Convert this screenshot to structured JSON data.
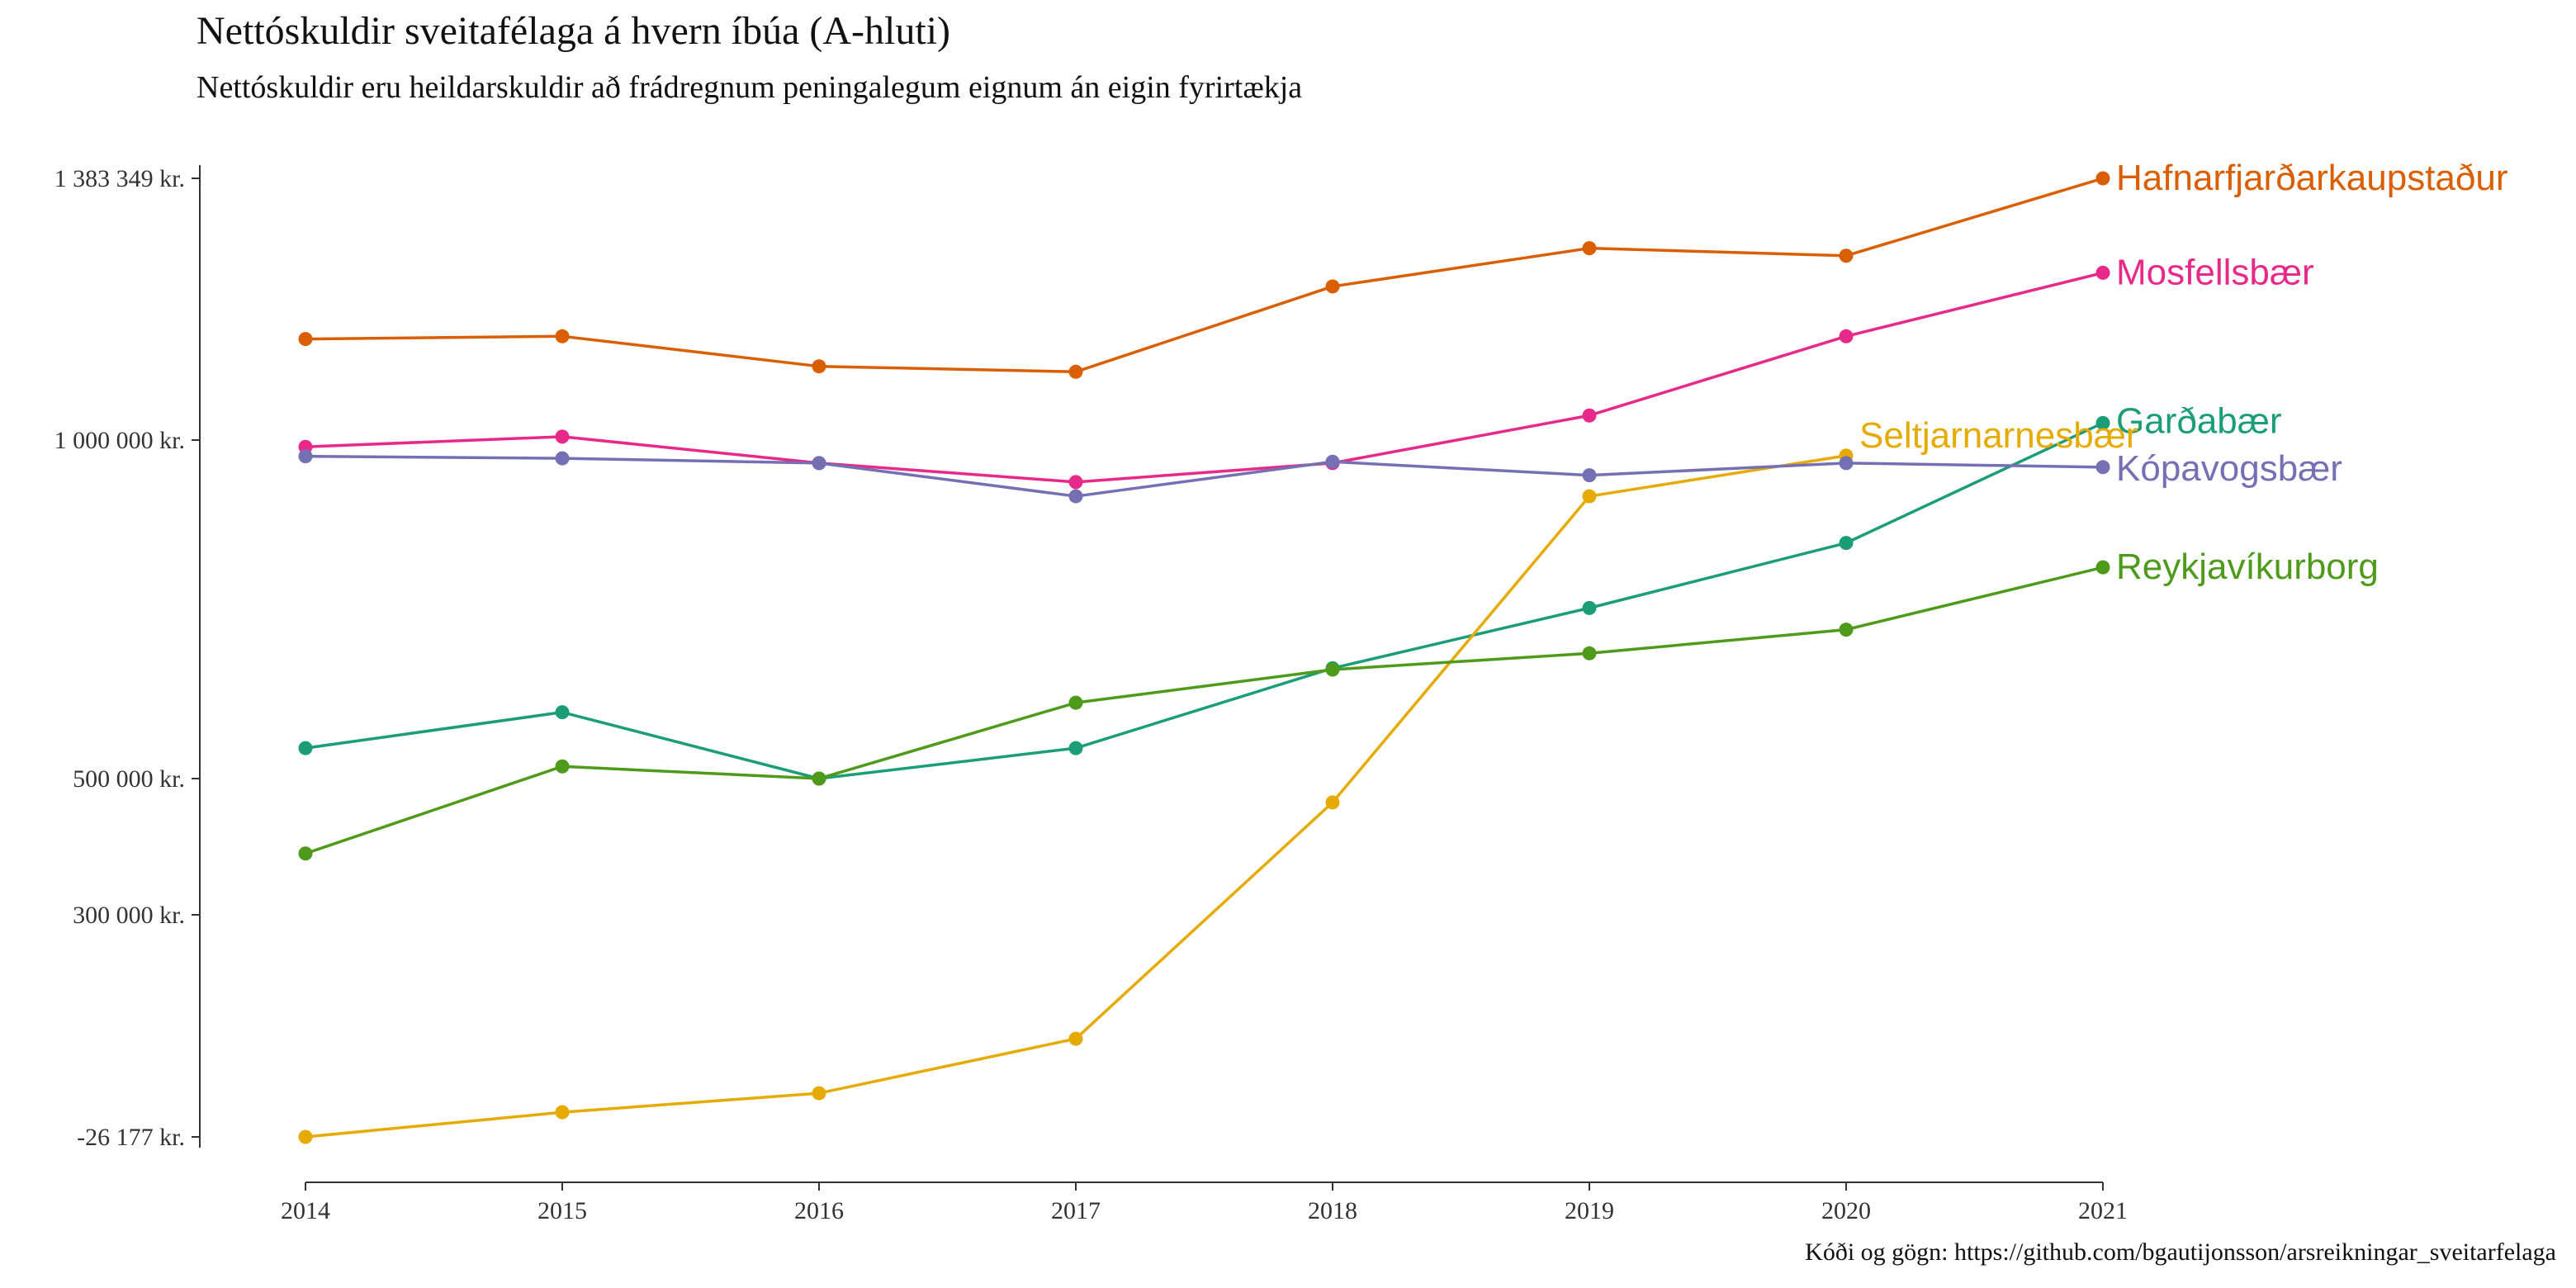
{
  "chart_data": {
    "type": "line",
    "title": "Nettóskuldir sveitafélaga á hvern íbúa (A-hluti)",
    "subtitle": "Nettóskuldir eru heildarskuldir að frádregnum peningalegum eignum án eigin fyrirtækja",
    "caption": "Kóði og gögn: https://github.com/bgautijonsson/arsreikningar_sveitarfelaga",
    "xlabel": "",
    "ylabel": "",
    "x": [
      2014,
      2015,
      2016,
      2017,
      2018,
      2019,
      2020,
      2021
    ],
    "x_ticks": [
      "2014",
      "2015",
      "2016",
      "2017",
      "2018",
      "2019",
      "2020",
      "2021"
    ],
    "y_tick_labels": [
      {
        "value": 1383349,
        "label": "1 383 349 kr."
      },
      {
        "value": 1000000,
        "label": "1 000 000 kr."
      },
      {
        "value": 500000,
        "label": "500 000 kr."
      },
      {
        "value": 300000,
        "label": "300 000 kr."
      },
      {
        "value": -26177,
        "label": "-26 177 kr."
      }
    ],
    "ylim": [
      -26177,
      1383349
    ],
    "grid": false,
    "series": [
      {
        "name": "Hafnarfjarðarkaupstaður",
        "color": "#D95F02",
        "values": [
          1148000,
          1152000,
          1108000,
          1100000,
          1225000,
          1281000,
          1270000,
          1383349
        ]
      },
      {
        "name": "Mosfellsbær",
        "color": "#E7298A",
        "values": [
          990000,
          1005000,
          966000,
          938000,
          966000,
          1036000,
          1152000,
          1245000
        ]
      },
      {
        "name": "Garðabær",
        "color": "#1B9E77",
        "values": [
          545000,
          598000,
          500000,
          545000,
          663000,
          752000,
          848000,
          1025000
        ]
      },
      {
        "name": "Seltjarnarnesbær",
        "color": "#E6AB02",
        "values": [
          -26177,
          10000,
          38000,
          118000,
          465000,
          917000,
          977000,
          null
        ]
      },
      {
        "name": "Kópavogsbær",
        "color": "#7570B3",
        "values": [
          976000,
          973000,
          966000,
          917000,
          968000,
          948000,
          966000,
          960000
        ]
      },
      {
        "name": "Reykjavíkurborg",
        "color": "#4E9A1A",
        "values": [
          390000,
          518000,
          500000,
          612000,
          661000,
          685000,
          720000,
          812000
        ]
      }
    ]
  }
}
